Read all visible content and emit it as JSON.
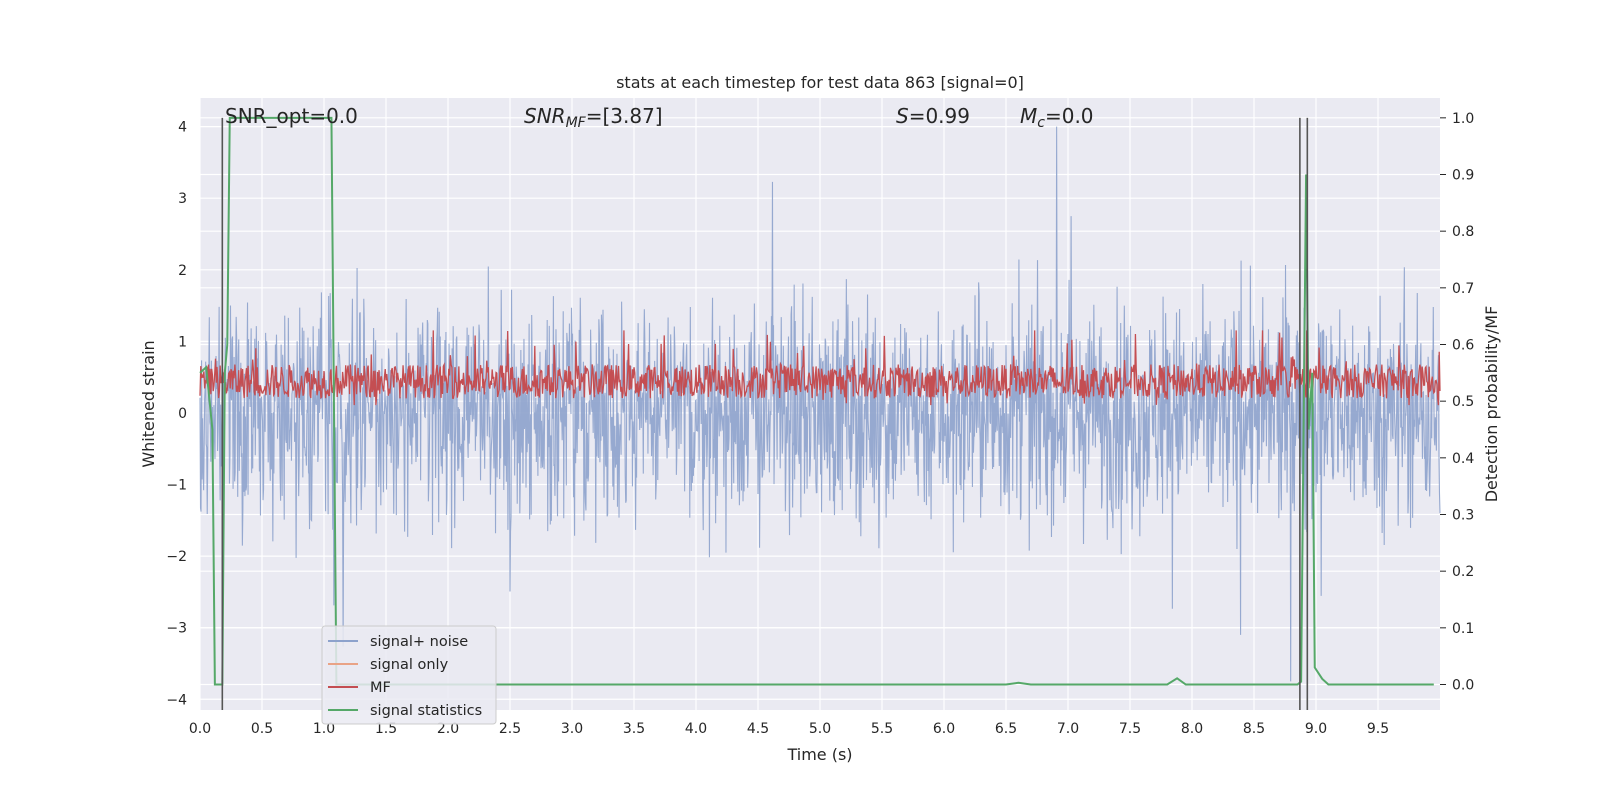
{
  "chart_data": {
    "type": "line",
    "title": "stats at each timestep for test data 863 [signal=0]",
    "xlabel": "Time (s)",
    "ylabel_left": "Whitened strain",
    "ylabel_right": "Detection probability/MF",
    "xlim": [
      0,
      10
    ],
    "ylim_left": [
      -4.15,
      4.4
    ],
    "ylim_right": [
      -0.045,
      1.035
    ],
    "x_ticks": [
      "0.0",
      "0.5",
      "1.0",
      "1.5",
      "2.0",
      "2.5",
      "3.0",
      "3.5",
      "4.0",
      "4.5",
      "5.0",
      "5.5",
      "6.0",
      "6.5",
      "7.0",
      "7.5",
      "8.0",
      "8.5",
      "9.0",
      "9.5"
    ],
    "y_ticks_left": [
      "−4",
      "−3",
      "−2",
      "−1",
      "0",
      "1",
      "2",
      "3",
      "4"
    ],
    "y_ticks_right": [
      "0.0",
      "0.1",
      "0.2",
      "0.3",
      "0.4",
      "0.5",
      "0.6",
      "0.7",
      "0.8",
      "0.9",
      "1.0"
    ],
    "grid": true,
    "legend_position": "lower-left",
    "annotations": {
      "snr_opt": "SNR_opt=0.0",
      "snr_mf_sym": "SNR",
      "snr_mf_sub": "MF",
      "snr_mf_val": "=[3.87]",
      "s_sym": "S",
      "s_val": "=0.99",
      "mc_sym": "M",
      "mc_sub": "c",
      "mc_val": "=0.0"
    },
    "series": [
      {
        "name": "signal+ noise",
        "axis": "left",
        "color": "#8da2cc",
        "description": "whitened strain noise, amplitude roughly between -3.8 and 4.0"
      },
      {
        "name": "signal only",
        "axis": "left",
        "color": "#e9a386",
        "values": []
      },
      {
        "name": "MF",
        "axis": "right",
        "color": "#c44e52",
        "description": "matched filter output, mostly 0.50 to 0.58, peaks up to 0.62"
      },
      {
        "name": "signal statistics",
        "axis": "right",
        "color": "#55a868",
        "points": [
          [
            0.0,
            0.55
          ],
          [
            0.05,
            0.56
          ],
          [
            0.1,
            0.45
          ],
          [
            0.12,
            0.0
          ],
          [
            0.18,
            0.0
          ],
          [
            0.2,
            0.55
          ],
          [
            0.22,
            0.6
          ],
          [
            0.24,
            1.0
          ],
          [
            0.5,
            1.0
          ],
          [
            1.0,
            1.0
          ],
          [
            1.06,
            1.0
          ],
          [
            1.1,
            0.0
          ],
          [
            1.5,
            0.0
          ],
          [
            6.5,
            0.0
          ],
          [
            6.6,
            0.003
          ],
          [
            6.7,
            0.0
          ],
          [
            7.8,
            0.0
          ],
          [
            7.88,
            0.011
          ],
          [
            7.95,
            0.0
          ],
          [
            8.85,
            0.0
          ],
          [
            8.88,
            0.005
          ],
          [
            8.92,
            0.9
          ],
          [
            8.94,
            0.45
          ],
          [
            8.97,
            0.55
          ],
          [
            8.99,
            0.03
          ],
          [
            9.05,
            0.01
          ],
          [
            9.1,
            0.0
          ],
          [
            9.95,
            0.0
          ]
        ]
      }
    ],
    "vertical_markers": [
      0.18,
      8.87,
      8.93
    ],
    "vertical_marker_color": "#555555"
  }
}
